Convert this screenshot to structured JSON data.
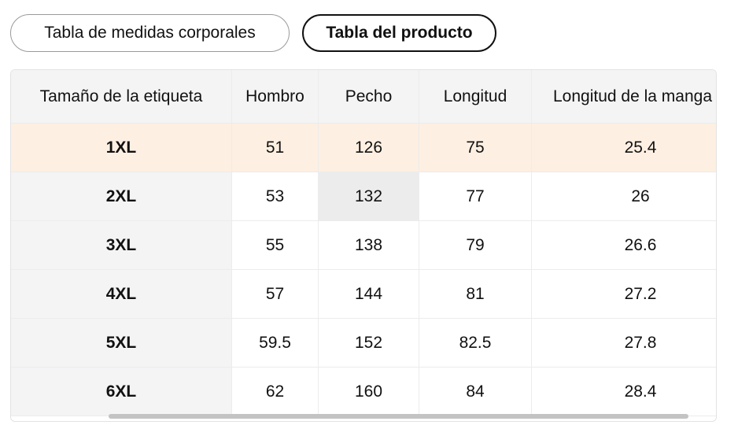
{
  "tabs": {
    "body_measurements": "Tabla de medidas corporales",
    "product_table": "Tabla del producto"
  },
  "table": {
    "headers": [
      "Tamaño de la etiqueta",
      "Hombro",
      "Pecho",
      "Longitud",
      "Longitud de la manga"
    ],
    "rows": [
      [
        "1XL",
        "51",
        "126",
        "75",
        "25.4"
      ],
      [
        "2XL",
        "53",
        "132",
        "77",
        "26"
      ],
      [
        "3XL",
        "55",
        "138",
        "79",
        "26.6"
      ],
      [
        "4XL",
        "57",
        "144",
        "81",
        "27.2"
      ],
      [
        "5XL",
        "59.5",
        "152",
        "82.5",
        "27.8"
      ],
      [
        "6XL",
        "62",
        "160",
        "84",
        "28.4"
      ]
    ]
  },
  "colors": {
    "highlight_row": "#fdf0e2",
    "header_bg": "#f4f4f5",
    "active_tab_border": "#111111"
  }
}
